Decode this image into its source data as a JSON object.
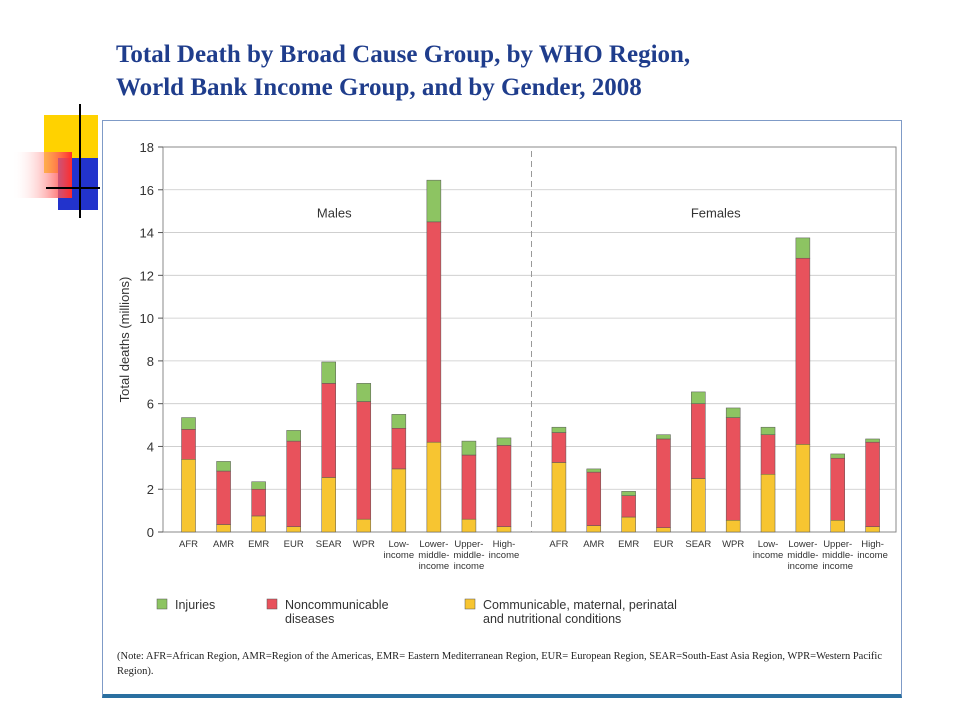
{
  "slide": {
    "title_line1": "Total Death by Broad Cause Group, by WHO Region,",
    "title_line2": "World Bank Income Group, and by Gender, 2008"
  },
  "note": "(Note: AFR=African Region, AMR=Region of the Americas, EMR= Eastern Mediterranean Region, EUR= European Region, SEAR=South-East Asia Region, WPR=Western Pacific Region).",
  "colors": {
    "injuries": "#8dc462",
    "noncommunicable": "#e8525c",
    "communicable": "#f7c531",
    "title": "#1f3d8c"
  },
  "chart_data": {
    "type": "bar",
    "stacked": true,
    "ylabel": "Total deaths (millions)",
    "ylim": [
      0,
      18
    ],
    "yticks": [
      0,
      2,
      4,
      6,
      8,
      10,
      12,
      14,
      16,
      18
    ],
    "grid": true,
    "groups": [
      {
        "name": "Males",
        "categories": [
          [
            "AFR"
          ],
          [
            "AMR"
          ],
          [
            "EMR"
          ],
          [
            "EUR"
          ],
          [
            "SEAR"
          ],
          [
            "WPR"
          ],
          [
            "Low-",
            "income"
          ],
          [
            "Lower-",
            "middle-",
            "income"
          ],
          [
            "Upper-",
            "middle-",
            "income"
          ],
          [
            "High-",
            "income"
          ]
        ],
        "series": [
          {
            "key": "communicable",
            "values": [
              3.4,
              0.35,
              0.75,
              0.25,
              2.55,
              0.6,
              2.95,
              4.2,
              0.6,
              0.25
            ]
          },
          {
            "key": "noncommunicable",
            "values": [
              1.4,
              2.5,
              1.25,
              4.0,
              4.4,
              5.5,
              1.9,
              10.3,
              3.0,
              3.8
            ]
          },
          {
            "key": "injuries",
            "values": [
              0.55,
              0.45,
              0.35,
              0.5,
              1.0,
              0.85,
              0.65,
              1.95,
              0.65,
              0.35
            ]
          }
        ]
      },
      {
        "name": "Females",
        "categories": [
          [
            "AFR"
          ],
          [
            "AMR"
          ],
          [
            "EMR"
          ],
          [
            "EUR"
          ],
          [
            "SEAR"
          ],
          [
            "WPR"
          ],
          [
            "Low-",
            "income"
          ],
          [
            "Lower-",
            "middle-",
            "income"
          ],
          [
            "Upper-",
            "middle-",
            "income"
          ],
          [
            "High-",
            "income"
          ]
        ],
        "series": [
          {
            "key": "communicable",
            "values": [
              3.25,
              0.3,
              0.7,
              0.2,
              2.5,
              0.55,
              2.7,
              4.1,
              0.55,
              0.25
            ]
          },
          {
            "key": "noncommunicable",
            "values": [
              1.4,
              2.5,
              1.0,
              4.15,
              3.5,
              4.8,
              1.85,
              8.7,
              2.9,
              3.95
            ]
          },
          {
            "key": "injuries",
            "values": [
              0.25,
              0.15,
              0.2,
              0.2,
              0.55,
              0.45,
              0.35,
              0.95,
              0.2,
              0.15
            ]
          }
        ]
      }
    ],
    "legend": {
      "position": "bottom",
      "items": [
        {
          "key": "injuries",
          "label": [
            "Injuries"
          ]
        },
        {
          "key": "noncommunicable",
          "label": [
            "Noncommunicable",
            "diseases"
          ]
        },
        {
          "key": "communicable",
          "label": [
            "Communicable, maternal, perinatal",
            "and nutritional conditions"
          ]
        }
      ]
    }
  }
}
